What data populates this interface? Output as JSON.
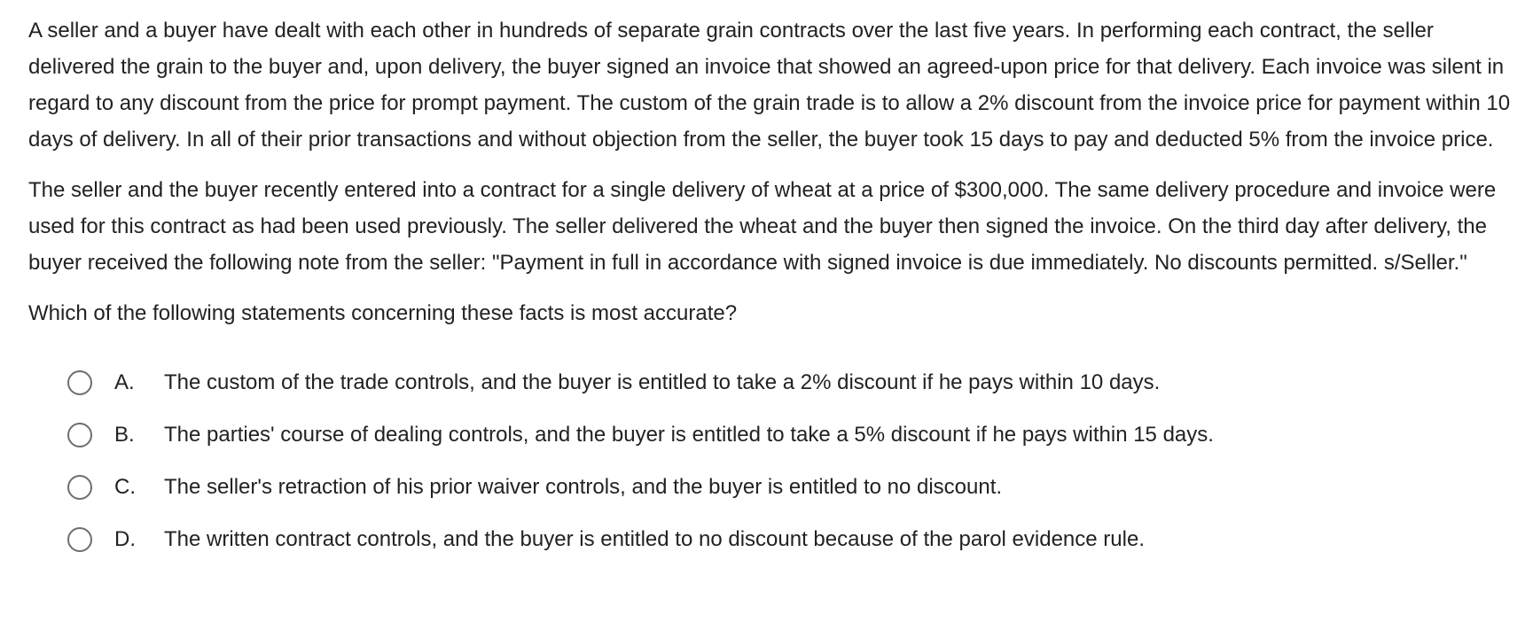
{
  "question": {
    "paragraphs": [
      "A seller and a buyer have dealt with each other in hundreds of separate grain contracts over the last five years.  In performing each contract, the seller delivered the grain to the buyer and, upon delivery, the buyer signed an invoice that showed an agreed-upon price for that delivery.  Each invoice was silent in regard to any discount from the price for prompt payment.  The custom of the grain trade is to allow a 2% discount from the invoice price for payment within 10 days of delivery.  In all of their prior transactions and without objection from the seller, the buyer took 15 days to pay and deducted 5% from the invoice price.",
      "The seller and the buyer recently entered into a contract for a single delivery of wheat at a price of $300,000.  The same delivery procedure and invoice were used for this contract as had been used previously.  The seller delivered the wheat and the buyer then signed the invoice.  On the third day after delivery, the buyer received the following note from the seller: \"Payment in full in accordance with signed invoice is due immediately.  No discounts permitted.  s/Seller.\""
    ],
    "prompt": "Which of the following statements concerning these facts is most accurate?"
  },
  "options": [
    {
      "letter": "A.",
      "text": "The custom of the trade controls, and the buyer is entitled to take a 2% discount if he pays within 10 days."
    },
    {
      "letter": "B.",
      "text": "The parties' course of dealing controls, and the buyer is entitled to take a 5% discount if he pays within 15 days."
    },
    {
      "letter": "C.",
      "text": "The seller's retraction of his prior waiver controls, and the buyer is entitled to no discount."
    },
    {
      "letter": "D.",
      "text": "The written contract controls, and the buyer is entitled to no discount because of the parol evidence rule."
    }
  ]
}
